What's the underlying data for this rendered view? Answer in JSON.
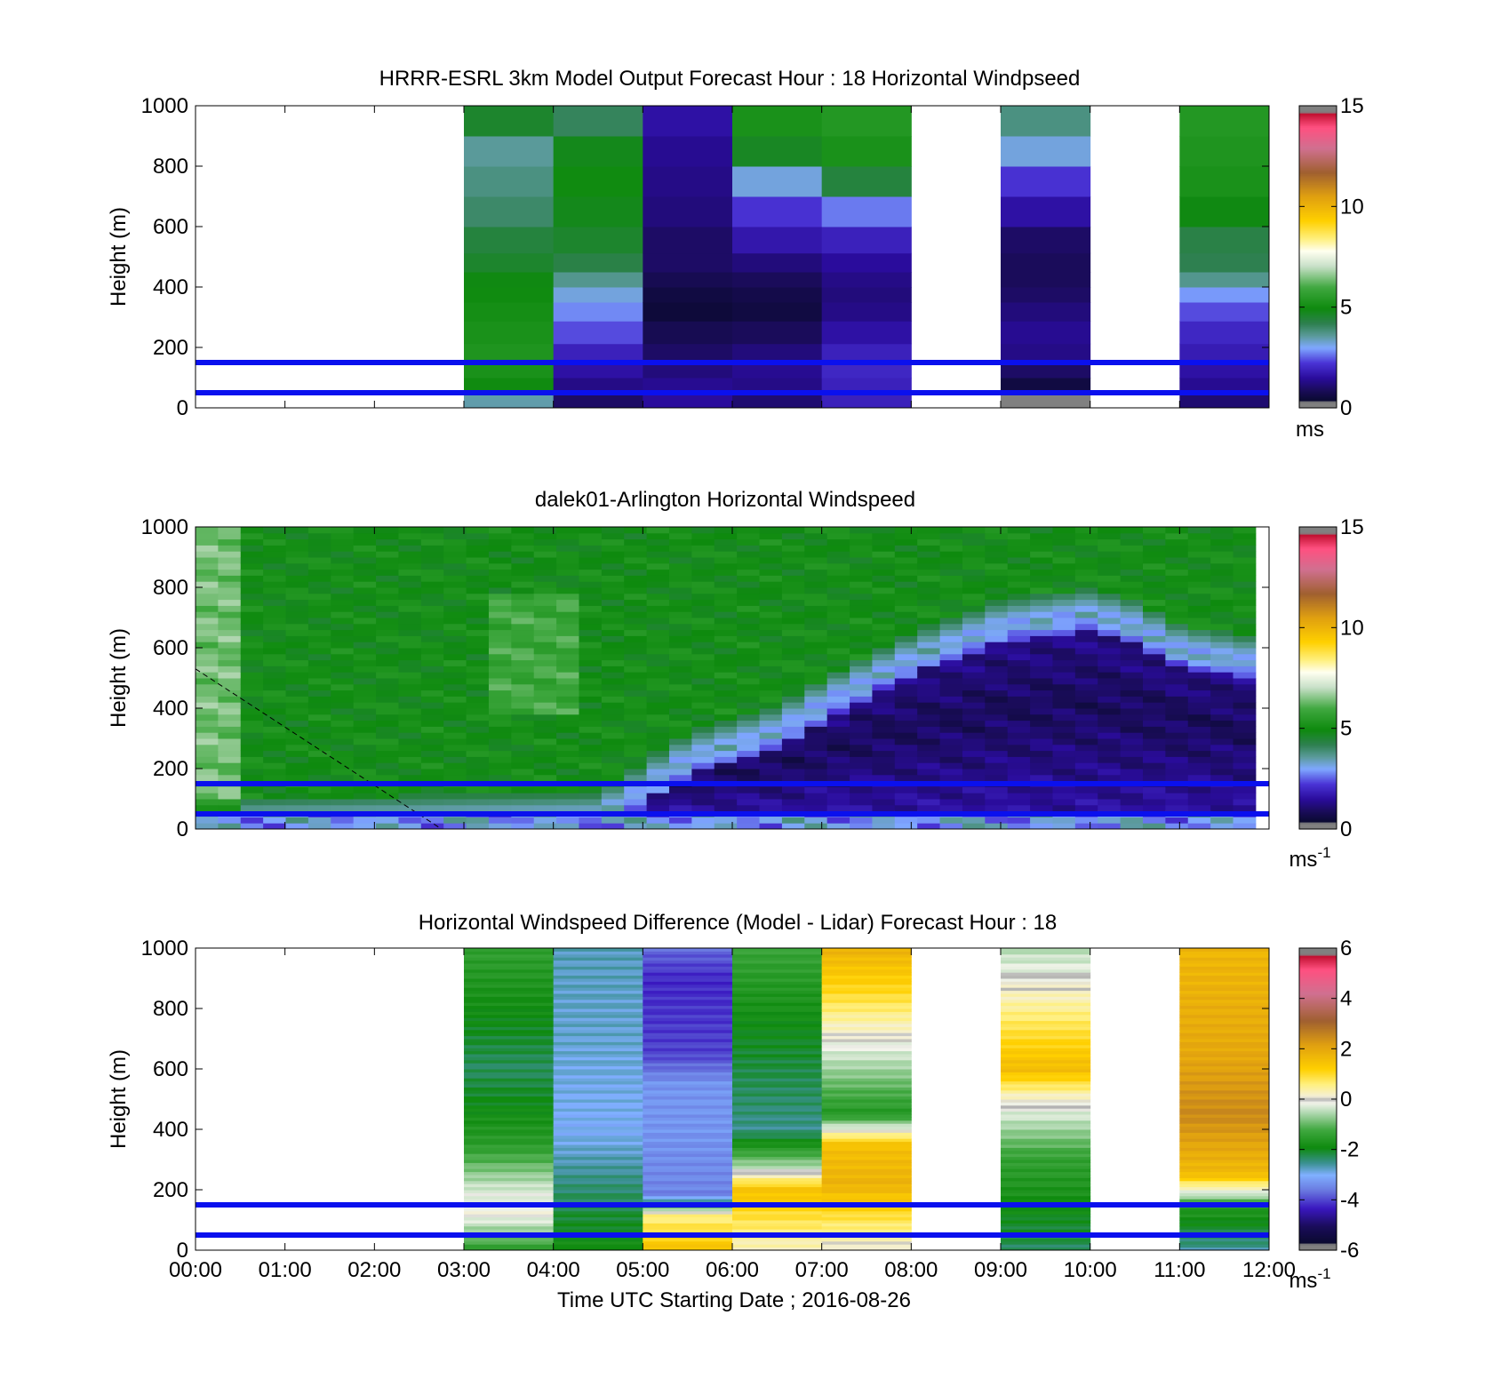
{
  "figure": {
    "x_axis_label": "Time UTC  Starting Date ; 2016-08-26",
    "time_ticks": [
      "00:00",
      "01:00",
      "02:00",
      "03:00",
      "04:00",
      "05:00",
      "06:00",
      "07:00",
      "08:00",
      "09:00",
      "10:00",
      "11:00",
      "12:00"
    ],
    "height_ticks": [
      "0",
      "200",
      "400",
      "600",
      "800",
      "1000"
    ],
    "reference_lines_m": [
      50,
      150
    ],
    "reference_line_color": "#0a10ee"
  },
  "chart_data": [
    {
      "type": "heatmap",
      "title": "HRRR-ESRL 3km Model Output   Forecast Hour : 18 Horizontal Windpseed",
      "ylabel": "Height (m)",
      "xlim_hours": [
        0,
        12
      ],
      "ylim": [
        0,
        1000
      ],
      "levels_m": [
        25,
        75,
        125,
        175,
        250,
        325,
        375,
        425,
        475,
        550,
        650,
        750,
        850,
        950
      ],
      "columns": [
        {
          "start_hour": 3,
          "values": [
            3.5,
            5.0,
            5.2,
            5.3,
            5.2,
            5.1,
            5.0,
            4.9,
            4.6,
            4.4,
            4.0,
            3.8,
            3.6,
            4.6
          ]
        },
        {
          "start_hour": 4,
          "values": [
            1.0,
            1.3,
            1.6,
            1.9,
            2.4,
            2.8,
            3.2,
            3.7,
            4.3,
            4.6,
            4.8,
            5.0,
            4.8,
            4.1
          ]
        },
        {
          "start_hour": 5,
          "values": [
            1.5,
            1.4,
            1.2,
            1.0,
            0.8,
            0.5,
            0.6,
            0.8,
            1.0,
            1.0,
            1.2,
            1.3,
            1.4,
            1.6
          ]
        },
        {
          "start_hour": 6,
          "values": [
            1.1,
            1.3,
            1.4,
            1.2,
            0.9,
            0.6,
            0.7,
            0.9,
            1.2,
            1.7,
            2.2,
            3.2,
            4.7,
            5.2
          ]
        },
        {
          "start_hour": 7,
          "values": [
            1.9,
            1.9,
            2.0,
            1.9,
            1.6,
            1.3,
            1.2,
            1.3,
            1.5,
            1.9,
            2.7,
            4.4,
            5.2,
            5.4
          ]
        },
        {
          "start_hour": 9,
          "values": [
            0.3,
            0.6,
            1.0,
            1.3,
            1.4,
            1.2,
            1.0,
            0.9,
            0.9,
            1.0,
            1.6,
            2.2,
            3.2,
            3.8
          ]
        },
        {
          "start_hour": 11,
          "values": [
            1.1,
            1.4,
            1.6,
            1.8,
            2.0,
            2.4,
            2.9,
            3.7,
            4.2,
            4.3,
            4.9,
            5.2,
            5.3,
            5.4
          ]
        }
      ],
      "colorbar": {
        "min": 0,
        "max": 15,
        "ticks": [
          "0",
          "5",
          "10",
          "15"
        ],
        "unit": "ms"
      }
    },
    {
      "type": "heatmap",
      "title": "dalek01-Arlington  Horizontal Windspeed",
      "ylabel": "Height (m)",
      "xlim_hours": [
        0,
        12
      ],
      "ylim": [
        0,
        1000
      ],
      "data_end_hour": 11.85,
      "dashed_line": {
        "from": [
          0,
          530
        ],
        "to": [
          2.75,
          0
        ]
      },
      "profile_model": {
        "low_speed_layer_top_m": [
          [
            0,
            20
          ],
          [
            4.5,
            40
          ],
          [
            5.5,
            240
          ],
          [
            6.5,
            330
          ],
          [
            7.0,
            420
          ],
          [
            8.0,
            570
          ],
          [
            9.0,
            680
          ],
          [
            10.0,
            720
          ],
          [
            10.5,
            680
          ],
          [
            11.0,
            600
          ],
          [
            11.8,
            560
          ]
        ],
        "core_min_ms": 0.9,
        "upper_speed_ms": 5.0,
        "near_surface_speed_ms": 3.0
      },
      "colorbar": {
        "min": 0,
        "max": 15,
        "ticks": [
          "0",
          "5",
          "10",
          "15"
        ],
        "unit": "ms",
        "unit_exp": "-1"
      }
    },
    {
      "type": "heatmap",
      "title": "Horizontal Windspeed Difference (Model - Lidar) Forecast Hour : 18",
      "ylabel": "Height (m)",
      "xlim_hours": [
        0,
        12
      ],
      "ylim": [
        0,
        1000
      ],
      "profiles": [
        {
          "start_hour": 3,
          "stops": [
            [
              0,
              -1.5
            ],
            [
              120,
              0.0
            ],
            [
              200,
              -0.3
            ],
            [
              350,
              -1.5
            ],
            [
              600,
              -2.3
            ],
            [
              1000,
              -1.4
            ]
          ]
        },
        {
          "start_hour": 4,
          "stops": [
            [
              0,
              -1.8
            ],
            [
              150,
              -2.2
            ],
            [
              400,
              -3.0
            ],
            [
              700,
              -2.8
            ],
            [
              1000,
              -2.7
            ]
          ]
        },
        {
          "start_hour": 5,
          "stops": [
            [
              0,
              1.5
            ],
            [
              120,
              0.5
            ],
            [
              180,
              -3.5
            ],
            [
              400,
              -3.3
            ],
            [
              550,
              -3.3
            ],
            [
              650,
              -4.0
            ],
            [
              900,
              -4.2
            ],
            [
              1000,
              -3.7
            ]
          ]
        },
        {
          "start_hour": 6,
          "stops": [
            [
              0,
              0.2
            ],
            [
              200,
              1.5
            ],
            [
              280,
              -0.6
            ],
            [
              400,
              -2.5
            ],
            [
              700,
              -2.0
            ],
            [
              1000,
              -1.3
            ]
          ]
        },
        {
          "start_hour": 7,
          "stops": [
            [
              0,
              0.0
            ],
            [
              220,
              1.8
            ],
            [
              350,
              1.5
            ],
            [
              450,
              -1.6
            ],
            [
              700,
              0.0
            ],
            [
              850,
              1.0
            ],
            [
              1000,
              1.8
            ]
          ]
        },
        {
          "start_hour": 9,
          "stops": [
            [
              0,
              -2.3
            ],
            [
              300,
              -1.4
            ],
            [
              500,
              0.1
            ],
            [
              600,
              1.6
            ],
            [
              800,
              0.5
            ],
            [
              950,
              -0.3
            ],
            [
              1000,
              -0.5
            ]
          ]
        },
        {
          "start_hour": 11,
          "stops": [
            [
              0,
              -2.6
            ],
            [
              150,
              -1.5
            ],
            [
              250,
              1.6
            ],
            [
              450,
              2.5
            ],
            [
              650,
              2.0
            ],
            [
              1000,
              1.7
            ]
          ]
        }
      ],
      "colorbar": {
        "min": -6,
        "max": 6,
        "ticks": [
          "-6",
          "-4",
          "-2",
          "0",
          "2",
          "4",
          "6"
        ],
        "unit": "ms",
        "unit_exp": "-1"
      }
    }
  ]
}
